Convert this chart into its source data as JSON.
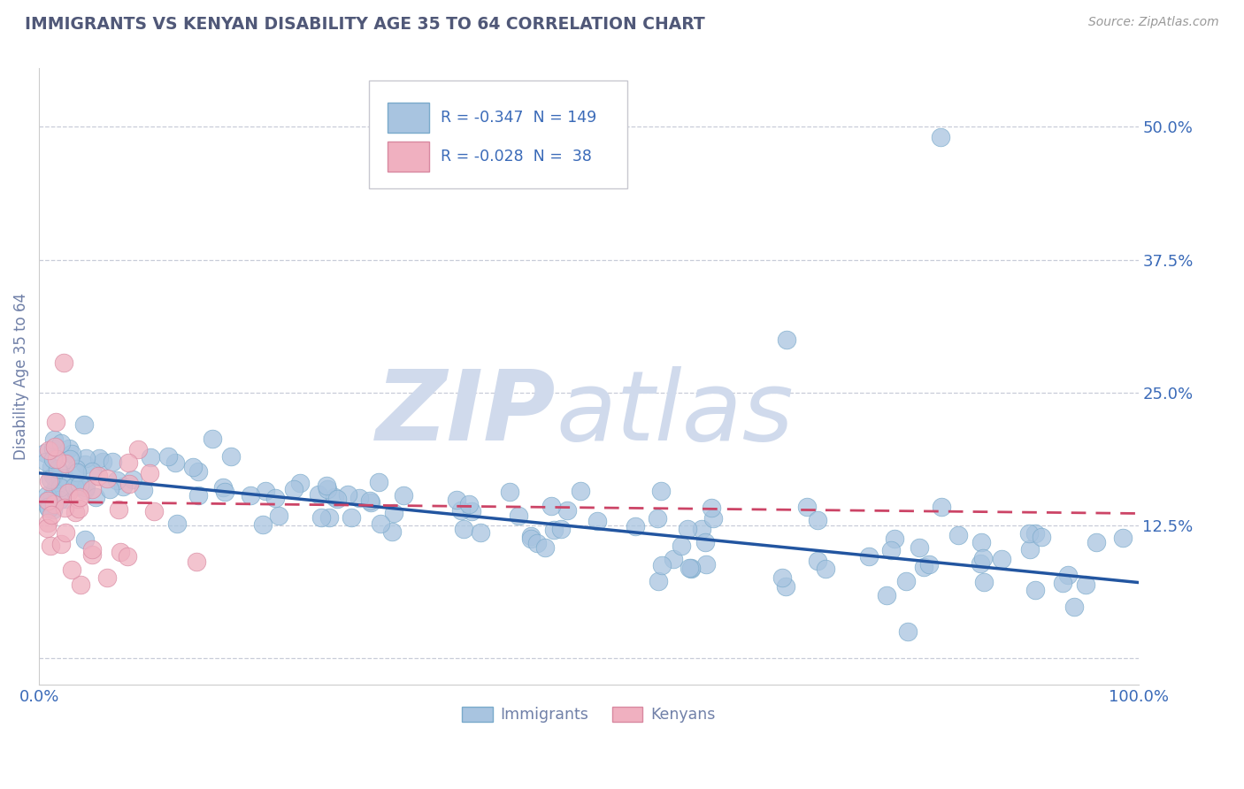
{
  "title": "IMMIGRANTS VS KENYAN DISABILITY AGE 35 TO 64 CORRELATION CHART",
  "source_text": "Source: ZipAtlas.com",
  "ylabel": "Disability Age 35 to 64",
  "xlim": [
    0.0,
    1.0
  ],
  "ylim": [
    -0.025,
    0.555
  ],
  "yticks": [
    0.0,
    0.125,
    0.25,
    0.375,
    0.5
  ],
  "ytick_labels": [
    "",
    "12.5%",
    "25.0%",
    "37.5%",
    "50.0%"
  ],
  "xtick_labels": [
    "0.0%",
    "100.0%"
  ],
  "legend_R_imm": "-0.347",
  "legend_N_imm": "149",
  "legend_R_ken": "-0.028",
  "legend_N_ken": "38",
  "imm_color": "#a8c4e0",
  "imm_edge_color": "#7aaacb",
  "ken_color": "#f0b0c0",
  "ken_edge_color": "#d888a0",
  "imm_line_color": "#2255a0",
  "ken_line_color": "#cc4466",
  "title_color": "#505878",
  "axis_label_color": "#7080a8",
  "tick_label_color": "#3a6ab8",
  "watermark_zip_color": "#d0daec",
  "watermark_atlas_color": "#d0daec",
  "background_color": "#ffffff",
  "grid_color": "#c8ccd8",
  "imm_line_x0": 0.0,
  "imm_line_x1": 1.0,
  "imm_line_y0": 0.174,
  "imm_line_y1": 0.071,
  "ken_line_x0": 0.0,
  "ken_line_x1": 1.0,
  "ken_line_y0": 0.147,
  "ken_line_y1": 0.136
}
